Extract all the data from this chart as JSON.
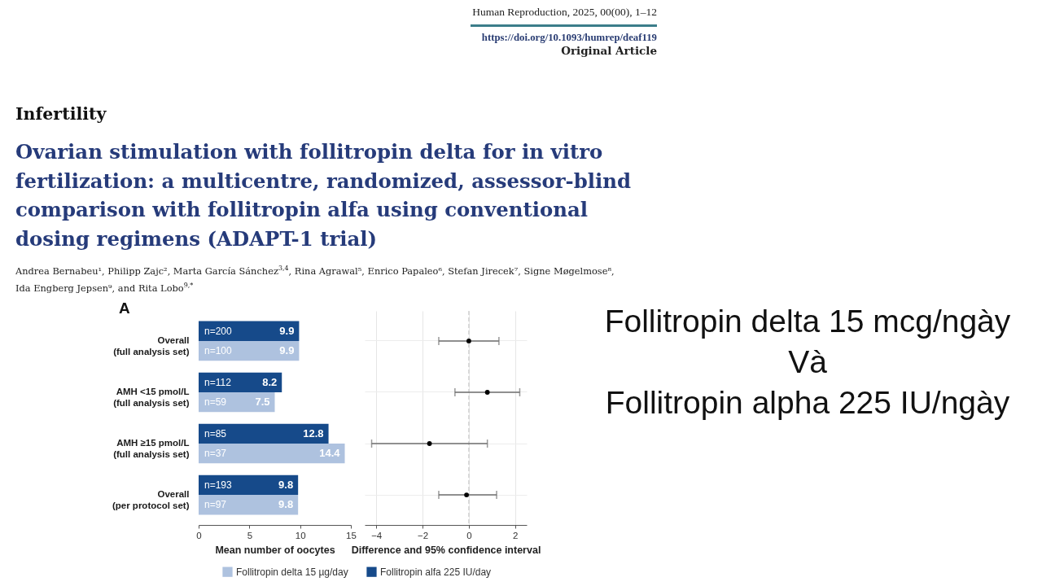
{
  "chart_data": [
    {
      "type": "bar",
      "orientation": "horizontal",
      "title": "Ovarian stimulation with follitropin delta for in vitro fertilization: a multicentre, randomized, assessor-blind comparison with follitropin alfa using conventional dosing regimens (ADAPT-1 trial)",
      "annotations": [
        "Human Reproduction, 2025, 00(00), 1–12",
        "https://doi.org/10.1093/humrep/deaf119",
        "Original Article",
        "Infertility",
        "Andrea Bernabeu¹, Philipp Zajc², Marta García Sánchez$^{3,4}$, Rina Agrawal⁵, Enrico Papaleo⁶, Stefan Jirecek⁷, Signe Møgelmose⁸, Ida Engberg Jepsen⁹, and Rita Lobo$^{9,*}$",
        "A",
        "Follitropin delta 15 mcg/ngày\nVà\nFollitropin alpha 225 IU/ngày",
        "n=200",
        "n=100",
        "n=112",
        "n=59",
        "n=85",
        "n=37",
        "n=193",
        "n=97"
      ],
      "categories": [
        "Overall\n(full analysis set)",
        "AMH <15 pmol/L\n(full analysis set)",
        "AMH ≥15 pmol/L\n(full analysis set)",
        "Overall\n(per protocol set)"
      ],
      "series": [
        {
          "name": "Follitropin delta 15 µg/day",
          "color": "#aec2df",
          "values": [
            9.9,
            7.5,
            14.4,
            9.8
          ]
        },
        {
          "name": "Follitropin alfa 225 IU/day",
          "color": "#164a8a",
          "values": [
            9.9,
            8.2,
            12.8,
            9.8
          ]
        }
      ],
      "xlim": [
        0,
        15
      ],
      "xticks": [
        0,
        5,
        10,
        15
      ],
      "xlabel": "Mean number of oocytes",
      "data_labels": true,
      "legend": "bottom"
    },
    {
      "type": "scatter",
      "orientation": "horizontal",
      "categories": [
        "Overall\n(full analysis set)",
        "AMH <15 pmol/L\n(full analysis set)",
        "AMH ≥15 pmol/L\n(full analysis set)",
        "Overall\n(per protocol set)"
      ],
      "values": [
        0,
        0.8,
        -1.7,
        -0.1
      ],
      "errors": [
        [
          -1.3,
          1.3
        ],
        [
          -0.6,
          2.2
        ],
        [
          -4.2,
          0.8
        ],
        [
          -1.3,
          1.2
        ]
      ],
      "color": "#000000",
      "marker": "circle",
      "xlim": [
        -4.5,
        2.5
      ],
      "xticks": [
        -4,
        -2,
        0,
        2
      ],
      "xlabel": "Difference and 95% confidence interval",
      "ref_lines": [
        {
          "axis": "x",
          "value": 0,
          "color": "#c8c8c8",
          "line_style": "dashed"
        }
      ],
      "grid": true,
      "tick_labels": "x"
    }
  ]
}
